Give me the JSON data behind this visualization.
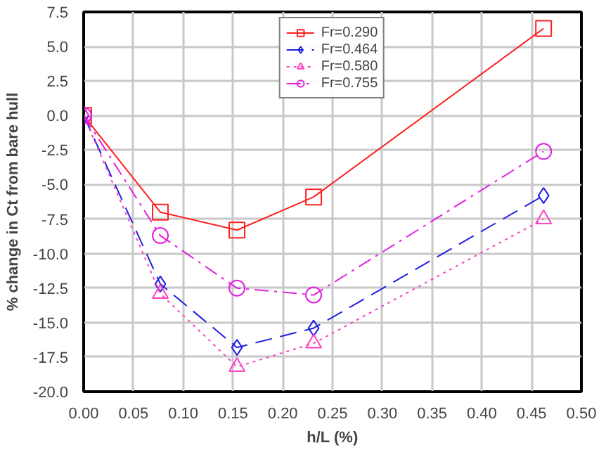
{
  "chart_data": {
    "type": "line",
    "xlabel": "h/L (%)",
    "ylabel": "% change in Ct from bare hull",
    "x": [
      0,
      0.077,
      0.154,
      0.231,
      0.462
    ],
    "series": [
      {
        "name": "Fr=0.290",
        "color": "#ff2020",
        "values": [
          0,
          -7.0,
          -8.3,
          -5.9,
          6.3
        ],
        "marker": "square",
        "line_style": "solid"
      },
      {
        "name": "Fr=0.464",
        "color": "#2020e0",
        "values": [
          0,
          -12.2,
          -16.8,
          -15.4,
          -5.8
        ],
        "marker": "diamond",
        "line_style": "dashed"
      },
      {
        "name": "Fr=0.580",
        "color": "#ff40c0",
        "values": [
          0,
          -12.9,
          -18.2,
          -16.5,
          -7.5
        ],
        "marker": "triangle",
        "line_style": "dotted"
      },
      {
        "name": "Fr=0.755",
        "color": "#e020e0",
        "values": [
          0,
          -8.7,
          -12.5,
          -13.0,
          -2.6
        ],
        "marker": "circle",
        "line_style": "dashdot"
      }
    ],
    "xlim": [
      0,
      0.5
    ],
    "xticks": [
      {
        "value": 0,
        "label": "0.00"
      },
      {
        "value": 0.05,
        "label": "0.05"
      },
      {
        "value": 0.1,
        "label": "0.10"
      },
      {
        "value": 0.15,
        "label": "0.15"
      },
      {
        "value": 0.2,
        "label": "0.20"
      },
      {
        "value": 0.25,
        "label": "0.25"
      },
      {
        "value": 0.3,
        "label": "0.30"
      },
      {
        "value": 0.35,
        "label": "0.35"
      },
      {
        "value": 0.4,
        "label": "0.40"
      },
      {
        "value": 0.45,
        "label": "0.45"
      },
      {
        "value": 0.5,
        "label": "0.50"
      }
    ],
    "ylim": [
      -20,
      7.5
    ],
    "yticks": [
      {
        "value": -20,
        "label": "-20.0"
      },
      {
        "value": -17.5,
        "label": "-17.5"
      },
      {
        "value": -15,
        "label": "-15.0"
      },
      {
        "value": -12.5,
        "label": "-12.5"
      },
      {
        "value": -10,
        "label": "-10.0"
      },
      {
        "value": -7.5,
        "label": "-7.5"
      },
      {
        "value": -5,
        "label": "-5.0"
      },
      {
        "value": -2.5,
        "label": "-2.5"
      },
      {
        "value": 0,
        "label": "0.0"
      },
      {
        "value": 2.5,
        "label": "2.5"
      },
      {
        "value": 5,
        "label": "5.0"
      },
      {
        "value": 7.5,
        "label": "7.5"
      }
    ],
    "grid": true,
    "legend": "top"
  }
}
